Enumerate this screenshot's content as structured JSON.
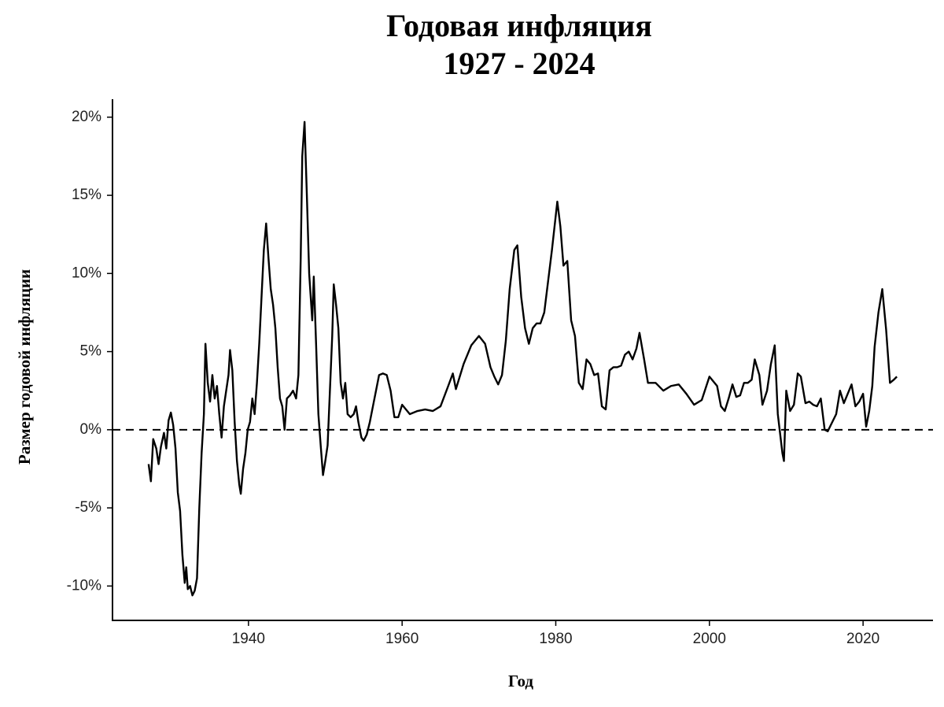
{
  "chart_data": {
    "type": "line",
    "title": "Годовая инфляция",
    "subtitle": "1927 - 2024",
    "x_label": "Год",
    "y_label": "Размер годовой инфляции",
    "color": "#000000",
    "hline": 0,
    "xlim": [
      1922.3,
      2029.1
    ],
    "ylim": [
      -12.2,
      21.05
    ],
    "xticks": [
      1940,
      1960,
      1980,
      2000,
      2020
    ],
    "yticks": [
      {
        "value": -10,
        "label": "-10%"
      },
      {
        "value": -5,
        "label": "-5%"
      },
      {
        "value": 0,
        "label": "0%"
      },
      {
        "value": 5,
        "label": "5%"
      },
      {
        "value": 10,
        "label": "10%"
      },
      {
        "value": 15,
        "label": "15%"
      },
      {
        "value": 20,
        "label": "20%"
      }
    ],
    "x": [
      1927.0,
      1927.3,
      1927.6,
      1928.0,
      1928.3,
      1928.6,
      1929.0,
      1929.3,
      1929.6,
      1929.9,
      1930.2,
      1930.5,
      1930.8,
      1931.1,
      1931.4,
      1931.7,
      1931.9,
      1932.1,
      1932.4,
      1932.7,
      1933.0,
      1933.3,
      1933.6,
      1933.9,
      1934.2,
      1934.4,
      1934.7,
      1935.0,
      1935.3,
      1935.6,
      1935.9,
      1936.2,
      1936.5,
      1936.8,
      1937.1,
      1937.4,
      1937.6,
      1937.9,
      1938.2,
      1938.5,
      1938.8,
      1939.0,
      1939.3,
      1939.6,
      1939.9,
      1940.2,
      1940.5,
      1940.8,
      1941.1,
      1941.4,
      1941.7,
      1942.0,
      1942.3,
      1942.6,
      1942.9,
      1943.2,
      1943.5,
      1943.8,
      1944.1,
      1944.4,
      1944.7,
      1945.0,
      1945.4,
      1945.8,
      1946.2,
      1946.5,
      1946.8,
      1947.0,
      1947.3,
      1947.6,
      1947.9,
      1948.1,
      1948.3,
      1948.5,
      1948.8,
      1949.1,
      1949.4,
      1949.7,
      1950.0,
      1950.3,
      1950.6,
      1950.9,
      1951.1,
      1951.4,
      1951.7,
      1952.0,
      1952.3,
      1952.6,
      1952.9,
      1953.3,
      1953.7,
      1954.0,
      1954.3,
      1954.7,
      1955.0,
      1955.4,
      1955.8,
      1956.2,
      1956.6,
      1957.0,
      1957.5,
      1958.0,
      1958.5,
      1959.0,
      1959.5,
      1960.0,
      1961.0,
      1962.0,
      1963.0,
      1964.0,
      1965.0,
      1966.0,
      1966.6,
      1967.0,
      1968.0,
      1969.0,
      1970.0,
      1970.8,
      1971.5,
      1972.0,
      1972.5,
      1973.0,
      1973.5,
      1974.0,
      1974.6,
      1975.0,
      1975.5,
      1976.0,
      1976.5,
      1977.0,
      1977.5,
      1978.0,
      1978.5,
      1979.0,
      1979.5,
      1980.2,
      1980.6,
      1981.0,
      1981.5,
      1982.0,
      1982.5,
      1983.0,
      1983.5,
      1984.0,
      1984.5,
      1985.0,
      1985.5,
      1986.0,
      1986.5,
      1987.0,
      1987.5,
      1988.0,
      1988.5,
      1989.0,
      1989.5,
      1990.0,
      1990.5,
      1990.9,
      1991.5,
      1992.0,
      1993.0,
      1994.0,
      1995.0,
      1996.0,
      1997.0,
      1998.0,
      1999.0,
      2000.0,
      2001.0,
      2001.5,
      2002.0,
      2002.5,
      2003.0,
      2003.5,
      2004.0,
      2004.5,
      2005.0,
      2005.5,
      2005.9,
      2006.5,
      2006.9,
      2007.5,
      2008.0,
      2008.5,
      2008.9,
      2009.5,
      2009.7,
      2010.0,
      2010.5,
      2011.0,
      2011.5,
      2011.9,
      2012.5,
      2013.0,
      2013.5,
      2014.0,
      2014.5,
      2015.0,
      2015.4,
      2015.8,
      2016.5,
      2017.0,
      2017.5,
      2018.0,
      2018.5,
      2019.0,
      2019.5,
      2020.0,
      2020.4,
      2020.8,
      2021.2,
      2021.5,
      2022.0,
      2022.5,
      2023.0,
      2023.5,
      2024.0,
      2024.4
    ],
    "values": [
      -2.2,
      -3.3,
      -0.6,
      -1.2,
      -2.2,
      -1.1,
      -0.2,
      -1.2,
      0.6,
      1.1,
      0.3,
      -1.2,
      -4.0,
      -5.2,
      -8.0,
      -9.8,
      -8.8,
      -10.2,
      -10.0,
      -10.6,
      -10.3,
      -9.5,
      -5.0,
      -1.5,
      1.0,
      5.5,
      3.0,
      1.8,
      3.5,
      2.0,
      2.8,
      1.0,
      -0.5,
      1.5,
      2.5,
      3.5,
      5.1,
      3.8,
      0.5,
      -2.0,
      -3.5,
      -4.1,
      -2.5,
      -1.5,
      0.0,
      0.5,
      2.0,
      1.0,
      3.0,
      5.5,
      8.5,
      11.5,
      13.2,
      11.0,
      9.0,
      8.0,
      6.5,
      4.0,
      2.0,
      1.5,
      0.0,
      2.0,
      2.2,
      2.5,
      2.0,
      3.5,
      11.0,
      17.5,
      19.7,
      15.0,
      10.0,
      8.5,
      7.0,
      9.8,
      5.5,
      1.0,
      -1.0,
      -2.9,
      -2.0,
      -1.0,
      2.5,
      6.0,
      9.3,
      8.0,
      6.5,
      3.0,
      2.0,
      3.0,
      1.0,
      0.8,
      1.0,
      1.5,
      0.5,
      -0.5,
      -0.7,
      -0.3,
      0.5,
      1.5,
      2.5,
      3.5,
      3.6,
      3.5,
      2.5,
      0.8,
      0.8,
      1.6,
      1.0,
      1.2,
      1.3,
      1.2,
      1.5,
      2.8,
      3.6,
      2.6,
      4.2,
      5.4,
      6.0,
      5.5,
      4.0,
      3.4,
      2.9,
      3.5,
      5.7,
      9.0,
      11.5,
      11.8,
      8.5,
      6.5,
      5.5,
      6.5,
      6.8,
      6.8,
      7.5,
      9.5,
      11.5,
      14.6,
      13.0,
      10.5,
      10.8,
      7.0,
      6.0,
      3.0,
      2.6,
      4.5,
      4.2,
      3.5,
      3.6,
      1.5,
      1.3,
      3.8,
      4.0,
      4.0,
      4.1,
      4.8,
      5.0,
      4.5,
      5.2,
      6.2,
      4.5,
      3.0,
      3.0,
      2.5,
      2.8,
      2.9,
      2.3,
      1.6,
      1.9,
      3.4,
      2.8,
      1.5,
      1.2,
      2.0,
      2.9,
      2.1,
      2.2,
      3.0,
      3.0,
      3.2,
      4.5,
      3.5,
      1.6,
      2.5,
      4.2,
      5.4,
      1.0,
      -1.5,
      -2.0,
      2.5,
      1.2,
      1.6,
      3.6,
      3.4,
      1.7,
      1.8,
      1.6,
      1.5,
      2.0,
      0.0,
      -0.1,
      0.3,
      1.0,
      2.5,
      1.7,
      2.3,
      2.9,
      1.5,
      1.8,
      2.3,
      0.2,
      1.2,
      2.8,
      5.3,
      7.5,
      9.0,
      6.4,
      3.0,
      3.2,
      3.4
    ]
  }
}
